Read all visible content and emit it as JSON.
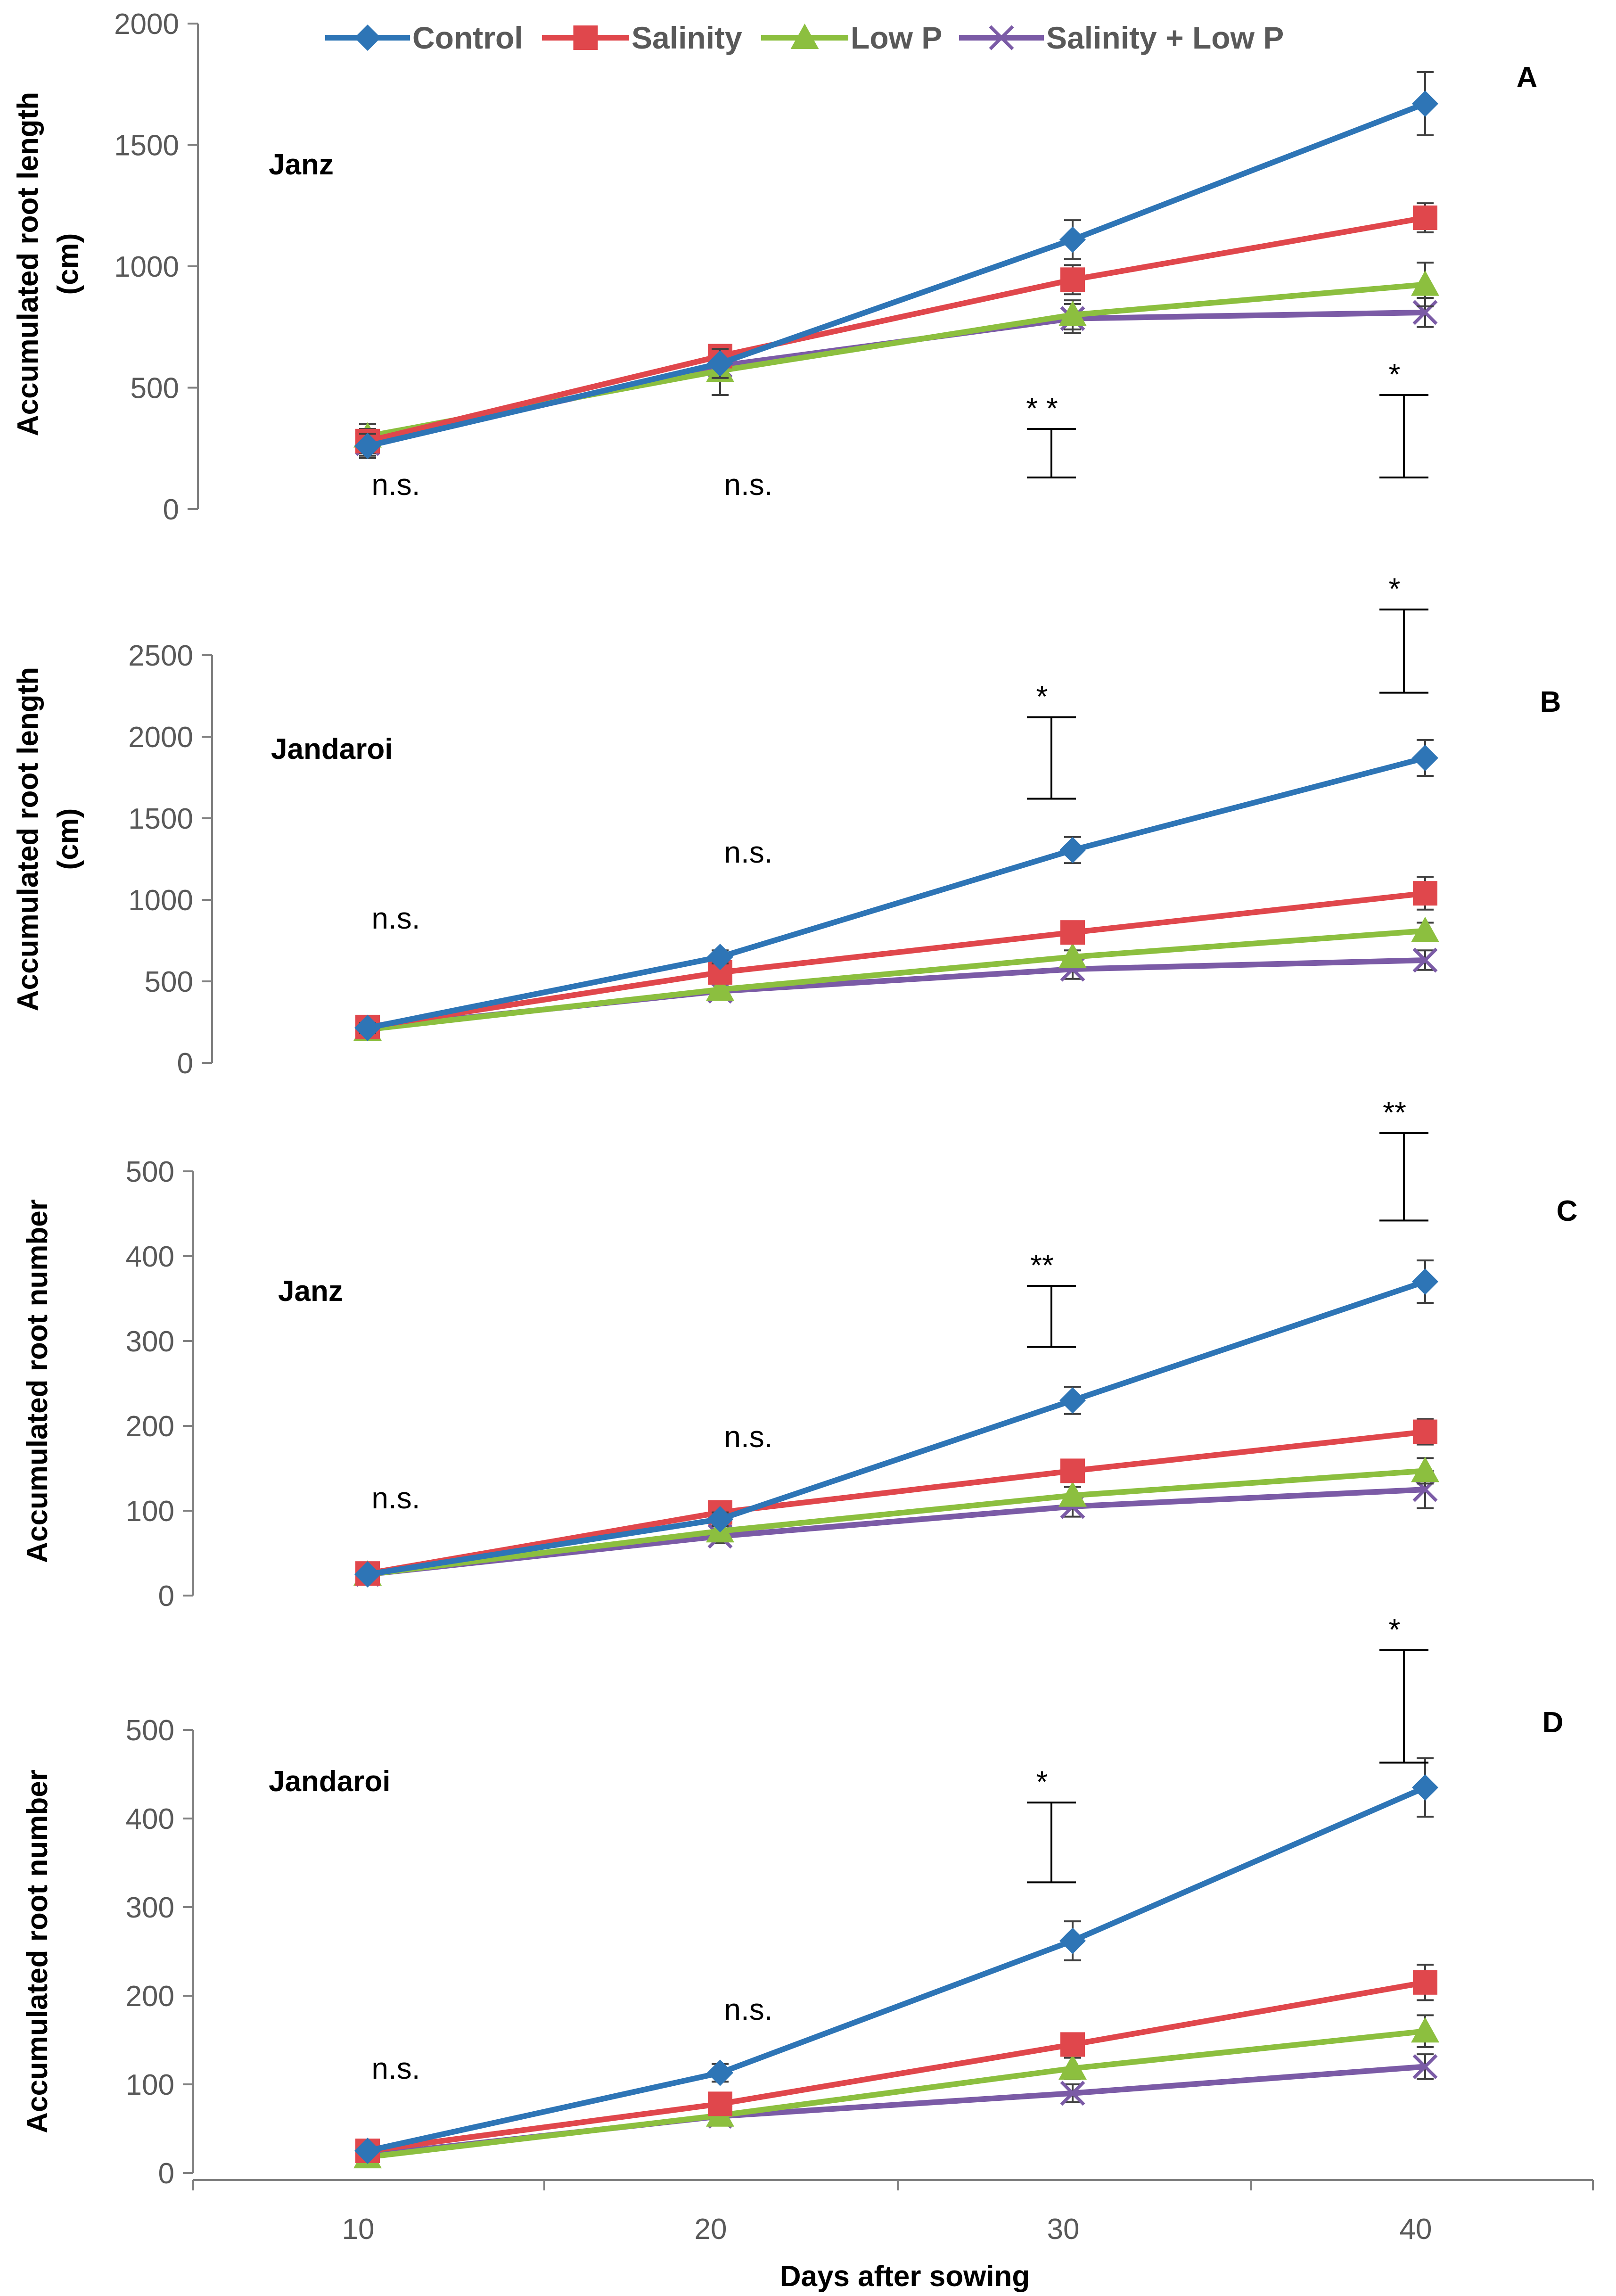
{
  "legend": [
    "Control",
    "Salinity",
    "Low P",
    "Salinity + Low P"
  ],
  "colors": {
    "Control": "#2E75B6",
    "Salinity": "#E0474C",
    "Low P": "#8CBF3F",
    "Salinity + Low P": "#7B5BA6",
    "axis": "#808080",
    "errorbar": "#404040",
    "lsd": "#000000"
  },
  "xlabel": "Days after sowing",
  "xticks": [
    10,
    20,
    30,
    40
  ],
  "chart_data": [
    {
      "type": "line",
      "panel": "A",
      "cultivar": "Janz",
      "ylabel": [
        "Accumulated root length",
        "(cm)"
      ],
      "ylim": [
        0,
        2000
      ],
      "yticks": [
        0,
        500,
        1000,
        1500,
        2000
      ],
      "x": [
        10,
        20,
        30,
        40
      ],
      "series": [
        {
          "name": "Control",
          "values": [
            260,
            600,
            1110,
            1670
          ],
          "err": [
            50,
            60,
            80,
            130
          ]
        },
        {
          "name": "Salinity",
          "values": [
            280,
            630,
            945,
            1200
          ],
          "err": [
            50,
            40,
            60,
            60
          ]
        },
        {
          "name": "Low P",
          "values": [
            300,
            570,
            800,
            925
          ],
          "err": [
            50,
            100,
            60,
            90
          ]
        },
        {
          "name": "Salinity + Low P",
          "values": [
            270,
            590,
            785,
            810
          ],
          "err": [
            50,
            60,
            60,
            60
          ]
        }
      ],
      "significance": [
        "n.s.",
        "n.s.",
        "* *",
        "*"
      ],
      "lsd": [
        null,
        null,
        [
          130,
          330
        ],
        [
          130,
          470
        ]
      ]
    },
    {
      "type": "line",
      "panel": "B",
      "cultivar": "Jandaroi",
      "ylabel": [
        "Accumulated root length",
        "(cm)"
      ],
      "ylim": [
        0,
        2500
      ],
      "yticks": [
        0,
        500,
        1000,
        1500,
        2000,
        2500
      ],
      "x": [
        10,
        20,
        30,
        40
      ],
      "series": [
        {
          "name": "Control",
          "values": [
            215,
            650,
            1305,
            1870
          ],
          "err": [
            30,
            40,
            80,
            110
          ]
        },
        {
          "name": "Salinity",
          "values": [
            220,
            555,
            800,
            1040
          ],
          "err": [
            30,
            40,
            40,
            100
          ]
        },
        {
          "name": "Low P",
          "values": [
            205,
            450,
            650,
            810
          ],
          "err": [
            30,
            40,
            40,
            50
          ]
        },
        {
          "name": "Salinity + Low P",
          "values": [
            215,
            440,
            575,
            630
          ],
          "err": [
            30,
            40,
            60,
            60
          ]
        }
      ],
      "significance": [
        "n.s.",
        "n.s.",
        "*",
        "*"
      ],
      "lsd": [
        null,
        null,
        [
          1620,
          2120
        ],
        [
          2270,
          2780
        ]
      ]
    },
    {
      "type": "line",
      "panel": "C",
      "cultivar": "Janz",
      "ylabel": [
        "Accumulated root number"
      ],
      "ylim": [
        0,
        500
      ],
      "yticks": [
        0,
        100,
        200,
        300,
        400,
        500
      ],
      "x": [
        10,
        20,
        30,
        40
      ],
      "series": [
        {
          "name": "Control",
          "values": [
            25,
            90,
            230,
            370
          ],
          "err": [
            4,
            8,
            16,
            25
          ]
        },
        {
          "name": "Salinity",
          "values": [
            26,
            98,
            147,
            193
          ],
          "err": [
            4,
            8,
            10,
            15
          ]
        },
        {
          "name": "Low P",
          "values": [
            25,
            76,
            118,
            147
          ],
          "err": [
            4,
            8,
            10,
            15
          ]
        },
        {
          "name": "Salinity + Low P",
          "values": [
            25,
            70,
            105,
            125
          ],
          "err": [
            4,
            8,
            12,
            22
          ]
        }
      ],
      "significance": [
        "n.s.",
        "n.s.",
        "**",
        "**"
      ],
      "lsd": [
        null,
        null,
        [
          293,
          365
        ],
        [
          442,
          545
        ]
      ]
    },
    {
      "type": "line",
      "panel": "D",
      "cultivar": "Jandaroi",
      "ylabel": [
        "Accumulated root number"
      ],
      "ylim": [
        0,
        500
      ],
      "yticks": [
        0,
        100,
        200,
        300,
        400,
        500
      ],
      "x": [
        10,
        20,
        30,
        40
      ],
      "series": [
        {
          "name": "Control",
          "values": [
            25,
            113,
            262,
            435
          ],
          "err": [
            4,
            10,
            22,
            33
          ]
        },
        {
          "name": "Salinity",
          "values": [
            25,
            78,
            145,
            215
          ],
          "err": [
            4,
            8,
            12,
            20
          ]
        },
        {
          "name": "Low P",
          "values": [
            18,
            65,
            118,
            160
          ],
          "err": [
            4,
            8,
            12,
            18
          ]
        },
        {
          "name": "Salinity + Low P",
          "values": [
            20,
            64,
            90,
            120
          ],
          "err": [
            4,
            8,
            10,
            14
          ]
        }
      ],
      "significance": [
        "n.s.",
        "n.s.",
        "*",
        "*"
      ],
      "lsd": [
        null,
        null,
        [
          328,
          418
        ],
        [
          463,
          590
        ]
      ]
    }
  ]
}
